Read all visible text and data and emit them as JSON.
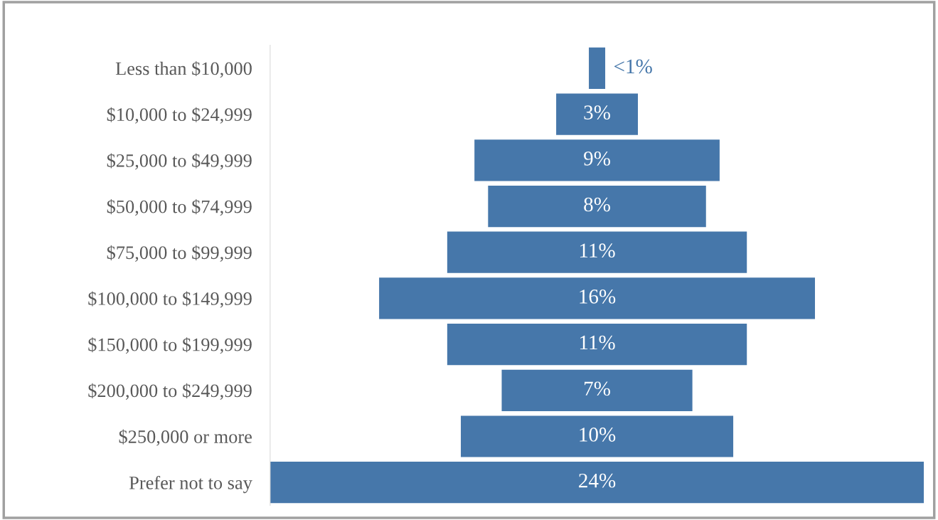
{
  "chart_data": {
    "type": "other",
    "color": "#4677aa",
    "categories": [
      "Less than $10,000",
      "$10,000 to $24,999",
      "$25,000 to $49,999",
      "$50,000 to $74,999",
      "$75,000 to $99,999",
      "$100,000 to $149,999",
      "$150,000 to $199,999",
      "$200,000 to $249,999",
      "$250,000 or more",
      "Prefer not to say"
    ],
    "values": [
      0.6,
      3,
      9,
      8,
      11,
      16,
      11,
      7,
      10,
      24
    ],
    "value_labels": [
      "<1%",
      "3%",
      "9%",
      "8%",
      "11%",
      "16%",
      "11%",
      "7%",
      "10%",
      "24%"
    ]
  }
}
